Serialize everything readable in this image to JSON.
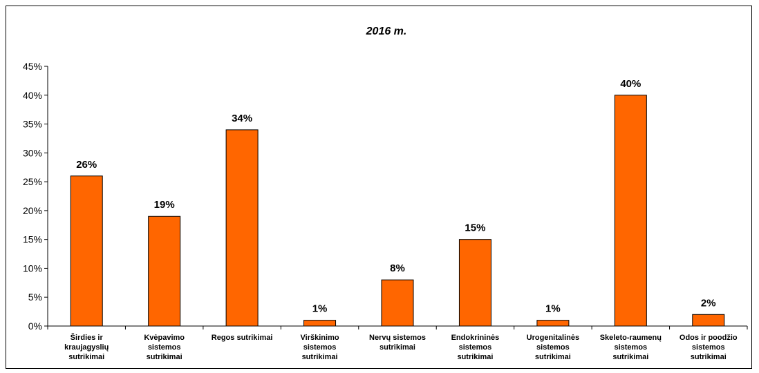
{
  "chart_data": {
    "type": "bar",
    "title": "2016 m.",
    "xlabel": "",
    "ylabel": "",
    "ylim": [
      0,
      45
    ],
    "yticks": [
      "0%",
      "5%",
      "10%",
      "15%",
      "20%",
      "25%",
      "30%",
      "35%",
      "40%",
      "45%"
    ],
    "ytick_values": [
      0,
      5,
      10,
      15,
      20,
      25,
      30,
      35,
      40,
      45
    ],
    "grid": false,
    "legend": "none",
    "bar_color": "#FF6600",
    "categories": [
      [
        "Širdies ir",
        "kraujagyslių",
        "sutrikimai"
      ],
      [
        "Kvėpavimo",
        "sistemos",
        "sutrikimai"
      ],
      [
        "Regos sutrikimai"
      ],
      [
        "Virškinimo",
        "sistemos",
        "sutrikimai"
      ],
      [
        "Nervų sistemos",
        "sutrikimai"
      ],
      [
        "Endokrininės",
        "sistemos",
        "sutrikimai"
      ],
      [
        "Urogenitalinės",
        "sistemos",
        "sutrikimai"
      ],
      [
        "Skeleto-raumenų",
        "sistemos",
        "sutrikimai"
      ],
      [
        "Odos ir poodžio",
        "sistemos",
        "sutrikimai"
      ]
    ],
    "values": [
      26,
      19,
      34,
      1,
      8,
      15,
      1,
      40,
      2
    ],
    "data_labels": [
      "26%",
      "19%",
      "34%",
      "1%",
      "8%",
      "15%",
      "1%",
      "40%",
      "2%"
    ]
  }
}
